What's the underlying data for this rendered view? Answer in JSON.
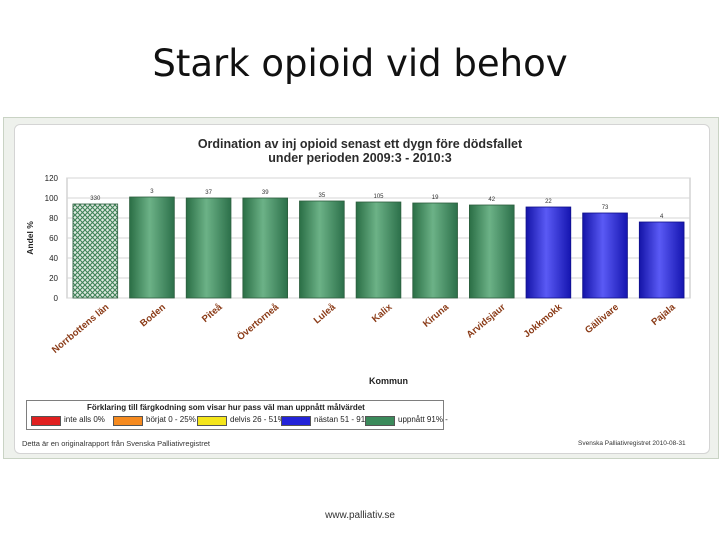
{
  "slide": {
    "title": "Stark opioid vid behov",
    "url": "www.palliativ.se"
  },
  "chart_data": {
    "type": "bar",
    "title_lines": [
      "Ordination av inj opioid senast ett dygn före dödsfallet",
      "under perioden 2009:3 - 2010:3"
    ],
    "xlabel": "Kommun",
    "ylabel": "Andel %",
    "ylim": [
      0,
      120
    ],
    "yticks": [
      "0",
      "20",
      "40",
      "60",
      "80",
      "100",
      "120"
    ],
    "grid": true,
    "categories": [
      "Norrbottens län",
      "Boden",
      "Piteå",
      "Övertorneå",
      "Luleå",
      "Kalix",
      "Kiruna",
      "Arvidsjaur",
      "Jokkmokk",
      "Gällivare",
      "Pajala"
    ],
    "values": [
      94,
      101,
      100,
      100,
      97,
      96,
      95,
      93,
      91,
      85,
      76
    ],
    "labels": [
      "330",
      "3",
      "37",
      "39",
      "35",
      "105",
      "19",
      "42",
      "22",
      "73",
      "4"
    ],
    "colors": [
      "hatched",
      "green",
      "green",
      "green",
      "green",
      "green",
      "green",
      "green",
      "blue",
      "blue",
      "blue"
    ],
    "color_hex": {
      "green": "#3b8a5b",
      "blue": "#2323d8",
      "hatched": "#4f8f64"
    },
    "legend": {
      "title": "Förklaring till färgkodning som visar hur pass väl man uppnått målvärdet",
      "placement": "bottom",
      "items": [
        {
          "label": "inte alls 0%",
          "color": "#e02020"
        },
        {
          "label": "börjat 0 - 25%",
          "color": "#f58a1f"
        },
        {
          "label": "delvis 26 - 51%",
          "color": "#f4e51b"
        },
        {
          "label": "nästan 51 - 91%",
          "color": "#2323d8"
        },
        {
          "label": "uppnått 91% -",
          "color": "#3b8a5b"
        }
      ]
    },
    "footer_left": "Detta är en originalrapport från Svenska Palliativregistret",
    "footer_right": "Svenska Palliativregistret 2010-08-31"
  }
}
